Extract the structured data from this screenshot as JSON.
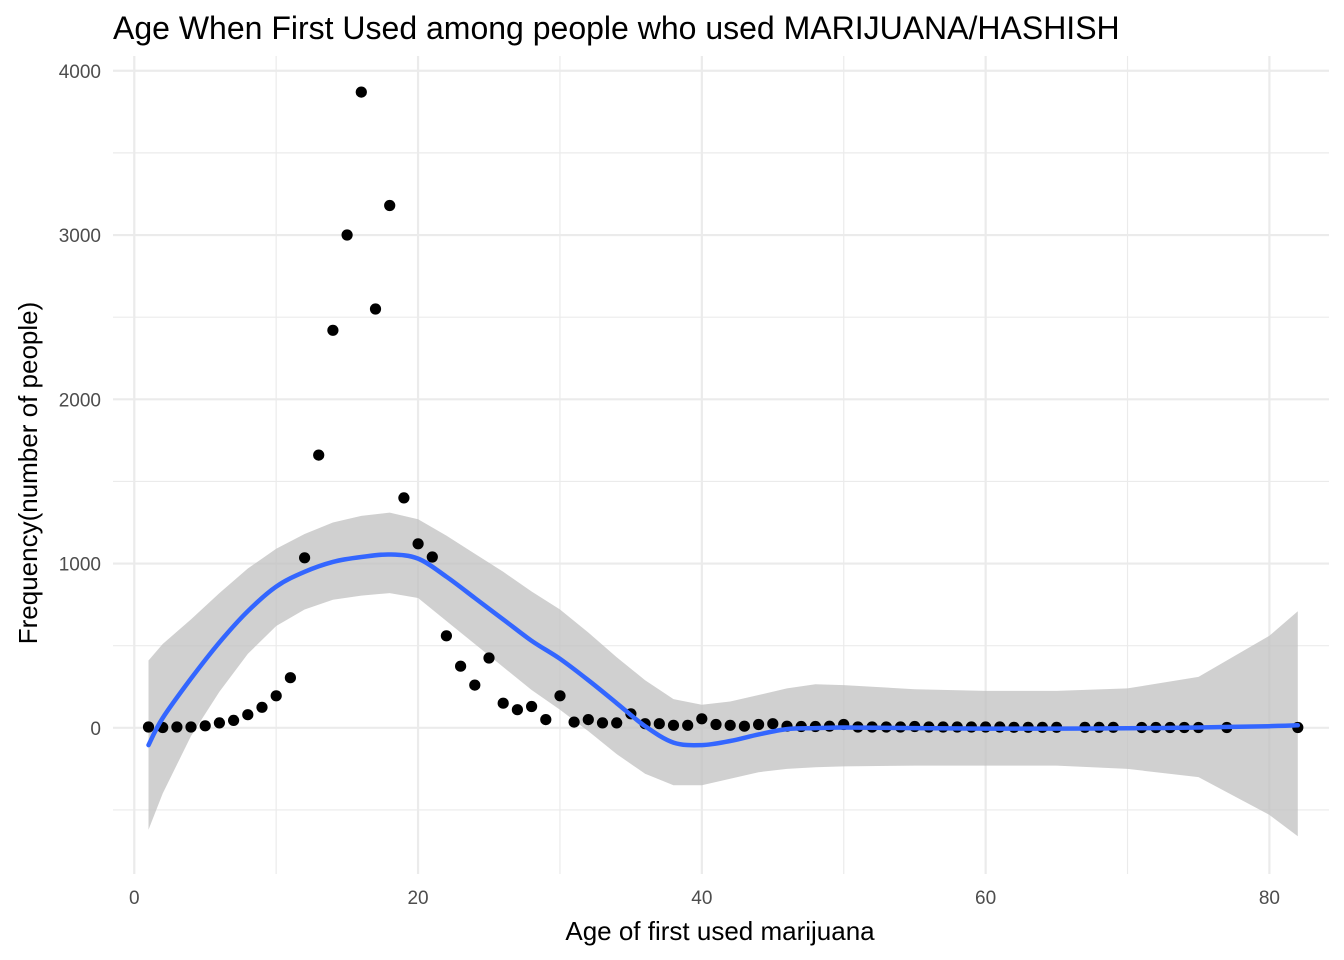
{
  "chart_data": {
    "type": "scatter",
    "title": "Age When First Used among people who used MARIJUANA/HASHISH",
    "xlabel": "Age of first used marijuana",
    "ylabel": "Frequency(number of people)",
    "xlim": [
      -1.5,
      84.2
    ],
    "ylim": [
      -890,
      4090
    ],
    "x_ticks": [
      0,
      20,
      40,
      60,
      80
    ],
    "x_tick_labels": [
      "0",
      "20",
      "40",
      "60",
      "80"
    ],
    "y_ticks": [
      0,
      1000,
      2000,
      3000,
      4000
    ],
    "y_tick_labels": [
      "0",
      "1000",
      "2000",
      "3000",
      "4000"
    ],
    "grid": true,
    "colors": {
      "points": "#000000",
      "smooth_line": "#3366FF",
      "confidence_band": "#BEBEBE",
      "grid": "#EBEBEB"
    },
    "points": [
      {
        "x": 1,
        "y": 5
      },
      {
        "x": 2,
        "y": 2
      },
      {
        "x": 3,
        "y": 5
      },
      {
        "x": 4,
        "y": 5
      },
      {
        "x": 5,
        "y": 12
      },
      {
        "x": 6,
        "y": 30
      },
      {
        "x": 7,
        "y": 45
      },
      {
        "x": 8,
        "y": 80
      },
      {
        "x": 9,
        "y": 125
      },
      {
        "x": 10,
        "y": 195
      },
      {
        "x": 11,
        "y": 305
      },
      {
        "x": 12,
        "y": 1035
      },
      {
        "x": 13,
        "y": 1660
      },
      {
        "x": 14,
        "y": 2420
      },
      {
        "x": 15,
        "y": 3000
      },
      {
        "x": 16,
        "y": 3870
      },
      {
        "x": 17,
        "y": 2550
      },
      {
        "x": 18,
        "y": 3180
      },
      {
        "x": 19,
        "y": 1400
      },
      {
        "x": 20,
        "y": 1120
      },
      {
        "x": 21,
        "y": 1040
      },
      {
        "x": 22,
        "y": 560
      },
      {
        "x": 23,
        "y": 375
      },
      {
        "x": 24,
        "y": 260
      },
      {
        "x": 25,
        "y": 425
      },
      {
        "x": 26,
        "y": 150
      },
      {
        "x": 27,
        "y": 110
      },
      {
        "x": 28,
        "y": 130
      },
      {
        "x": 29,
        "y": 50
      },
      {
        "x": 30,
        "y": 195
      },
      {
        "x": 31,
        "y": 35
      },
      {
        "x": 32,
        "y": 50
      },
      {
        "x": 33,
        "y": 30
      },
      {
        "x": 34,
        "y": 30
      },
      {
        "x": 35,
        "y": 85
      },
      {
        "x": 36,
        "y": 25
      },
      {
        "x": 37,
        "y": 25
      },
      {
        "x": 38,
        "y": 15
      },
      {
        "x": 39,
        "y": 15
      },
      {
        "x": 40,
        "y": 55
      },
      {
        "x": 41,
        "y": 20
      },
      {
        "x": 42,
        "y": 15
      },
      {
        "x": 43,
        "y": 10
      },
      {
        "x": 44,
        "y": 20
      },
      {
        "x": 45,
        "y": 25
      },
      {
        "x": 46,
        "y": 10
      },
      {
        "x": 47,
        "y": 8
      },
      {
        "x": 48,
        "y": 8
      },
      {
        "x": 49,
        "y": 10
      },
      {
        "x": 50,
        "y": 20
      },
      {
        "x": 51,
        "y": 5
      },
      {
        "x": 52,
        "y": 5
      },
      {
        "x": 53,
        "y": 5
      },
      {
        "x": 54,
        "y": 5
      },
      {
        "x": 55,
        "y": 8
      },
      {
        "x": 56,
        "y": 5
      },
      {
        "x": 57,
        "y": 5
      },
      {
        "x": 58,
        "y": 5
      },
      {
        "x": 59,
        "y": 5
      },
      {
        "x": 60,
        "y": 5
      },
      {
        "x": 61,
        "y": 5
      },
      {
        "x": 62,
        "y": 3
      },
      {
        "x": 63,
        "y": 3
      },
      {
        "x": 64,
        "y": 3
      },
      {
        "x": 65,
        "y": 3
      },
      {
        "x": 67,
        "y": 3
      },
      {
        "x": 68,
        "y": 3
      },
      {
        "x": 69,
        "y": 3
      },
      {
        "x": 71,
        "y": 2
      },
      {
        "x": 72,
        "y": 2
      },
      {
        "x": 73,
        "y": 2
      },
      {
        "x": 74,
        "y": 2
      },
      {
        "x": 75,
        "y": 2
      },
      {
        "x": 77,
        "y": 2
      },
      {
        "x": 82,
        "y": 2
      }
    ],
    "smooth": {
      "x": [
        1,
        2,
        4,
        6,
        8,
        10,
        12,
        14,
        16,
        18,
        20,
        22,
        24,
        26,
        28,
        30,
        32,
        34,
        36,
        38,
        40,
        42,
        44,
        46,
        48,
        50,
        55,
        60,
        65,
        70,
        75,
        80,
        82
      ],
      "y": [
        -105,
        60,
        300,
        520,
        710,
        860,
        950,
        1010,
        1040,
        1055,
        1030,
        920,
        790,
        660,
        530,
        420,
        290,
        150,
        10,
        -90,
        -105,
        -80,
        -40,
        -8,
        -2,
        2,
        -2,
        -5,
        -5,
        -3,
        2,
        10,
        15
      ],
      "ymin": [
        -620,
        -400,
        -50,
        220,
        450,
        620,
        720,
        780,
        805,
        820,
        790,
        650,
        510,
        370,
        230,
        110,
        -20,
        -160,
        -280,
        -350,
        -350,
        -310,
        -270,
        -250,
        -240,
        -235,
        -230,
        -230,
        -230,
        -250,
        -300,
        -530,
        -660
      ],
      "ymax": [
        410,
        510,
        660,
        820,
        970,
        1090,
        1180,
        1250,
        1290,
        1310,
        1270,
        1170,
        1060,
        950,
        830,
        720,
        580,
        430,
        290,
        175,
        140,
        160,
        200,
        240,
        265,
        260,
        235,
        225,
        225,
        240,
        310,
        560,
        710
      ]
    }
  }
}
